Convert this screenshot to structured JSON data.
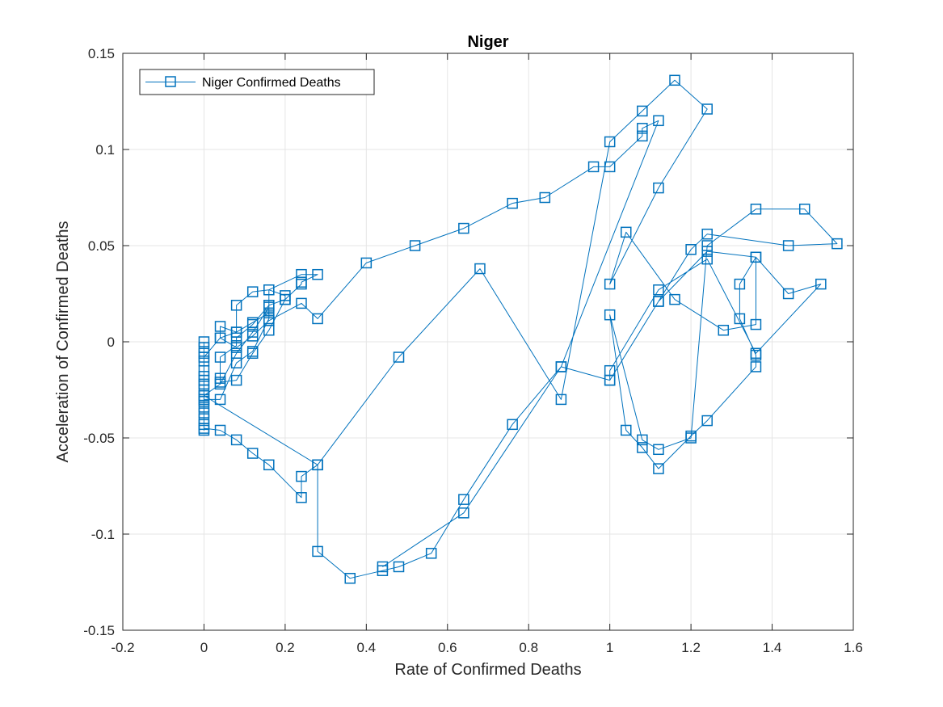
{
  "chart_data": {
    "type": "line",
    "title": "Niger",
    "xlabel": "Rate of Confirmed Deaths",
    "ylabel": "Acceleration of Confirmed Deaths",
    "xlim": [
      -0.2,
      1.6
    ],
    "ylim": [
      -0.15,
      0.15
    ],
    "xticks": [
      -0.2,
      0,
      0.2,
      0.4,
      0.6,
      0.8,
      1,
      1.2,
      1.4,
      1.6
    ],
    "yticks": [
      -0.15,
      -0.1,
      -0.05,
      0,
      0.05,
      0.1,
      0.15
    ],
    "xtick_labels": [
      "-0.2",
      "0",
      "0.2",
      "0.4",
      "0.6",
      "0.8",
      "1",
      "1.2",
      "1.4",
      "1.6"
    ],
    "ytick_labels": [
      "-0.15",
      "-0.1",
      "-0.05",
      "0",
      "0.05",
      "0.1",
      "0.15"
    ],
    "grid": true,
    "legend": {
      "position": "top-left",
      "entries": [
        "Niger Confirmed Deaths"
      ]
    },
    "colors": {
      "series": "#0072BD",
      "grid": "#E5E5E5",
      "axis": "#262626"
    },
    "series": [
      {
        "name": "Niger Confirmed Deaths",
        "marker": "square",
        "x": [
          0,
          0,
          0,
          0,
          0,
          0,
          0,
          0,
          0,
          0,
          0,
          0,
          0,
          0,
          0,
          0,
          0,
          0.04,
          0.08,
          0.12,
          0.16,
          0.16,
          0.16,
          0.24,
          0.28,
          0.24,
          0.24,
          0.2,
          0.16,
          0.12,
          0.08,
          0.08,
          0.04,
          0.04,
          0.04,
          0.08,
          0.12,
          0.16,
          0.2,
          0.2,
          0.16,
          0.12,
          0.08,
          0.08,
          0.04,
          0.04,
          0.08,
          0.12,
          0.16,
          0.24,
          0.28,
          0.4,
          0.52,
          0.64,
          0.76,
          0.84,
          0.96,
          1.0,
          1.08,
          1.08,
          1.12,
          0.88,
          0.76,
          0.64,
          0.56,
          0.48,
          0.44,
          0.36,
          0.28,
          0.28,
          0.24,
          0.24,
          0.16,
          0.12,
          0.08,
          0.04,
          0,
          0,
          0.04,
          0.08,
          0.12,
          0.16,
          0.16,
          0.12,
          0.08,
          0.04,
          0,
          0.28,
          0.48,
          0.68,
          0.88,
          1.0,
          1.08,
          1.16,
          1.24,
          1.12,
          1.0,
          1.04,
          1.16,
          1.28,
          1.36,
          1.36,
          1.44,
          1.52,
          1.36,
          1.24,
          1.12,
          1.0,
          1.0,
          1.12,
          1.2,
          1.24,
          1.44,
          1.56,
          1.48,
          1.36,
          1.24,
          1.2,
          1.12,
          1.08,
          1.0,
          1.04,
          1.08,
          1.12,
          1.2,
          1.24,
          1.36,
          1.36,
          1.32,
          1.32,
          1.36,
          1.24,
          1.12,
          1.0,
          0.88,
          0.64,
          0.44
        ],
        "y": [
          0,
          -0.003,
          -0.006,
          -0.01,
          -0.015,
          -0.02,
          -0.025,
          -0.028,
          -0.031,
          -0.034,
          -0.037,
          -0.04,
          -0.043,
          -0.046,
          -0.022,
          -0.018,
          -0.008,
          0.002,
          0.005,
          0.01,
          0.015,
          0.019,
          0.027,
          0.035,
          0.035,
          0.031,
          0.03,
          0.022,
          0.019,
          0.009,
          0.002,
          -0.002,
          -0.008,
          -0.019,
          -0.021,
          -0.02,
          -0.006,
          0.006,
          0.022,
          0.024,
          0.027,
          0.026,
          0.019,
          0.005,
          0.008,
          0.002,
          -0.003,
          0.003,
          0.011,
          0.02,
          0.012,
          0.041,
          0.05,
          0.059,
          0.072,
          0.075,
          0.091,
          0.091,
          0.107,
          0.111,
          0.115,
          -0.013,
          -0.043,
          -0.082,
          -0.11,
          -0.117,
          -0.119,
          -0.123,
          -0.109,
          -0.064,
          -0.07,
          -0.081,
          -0.064,
          -0.058,
          -0.051,
          -0.046,
          -0.045,
          -0.03,
          -0.03,
          -0.011,
          -0.005,
          0.012,
          0.018,
          0.005,
          -0.006,
          -0.022,
          -0.028,
          -0.064,
          -0.008,
          0.038,
          -0.03,
          0.104,
          0.12,
          0.136,
          0.121,
          0.08,
          0.03,
          0.057,
          0.022,
          0.006,
          0.009,
          0.044,
          0.025,
          0.03,
          -0.006,
          0.043,
          0.027,
          -0.015,
          -0.02,
          0.021,
          0.048,
          0.056,
          0.05,
          0.051,
          0.069,
          0.069,
          0.05,
          -0.05,
          -0.056,
          -0.051,
          0.014,
          -0.046,
          -0.055,
          -0.066,
          -0.049,
          -0.041,
          -0.013,
          -0.007,
          0.012,
          0.03,
          0.044,
          0.047,
          0.021,
          -0.02,
          -0.013,
          -0.089,
          -0.117
        ]
      }
    ]
  }
}
